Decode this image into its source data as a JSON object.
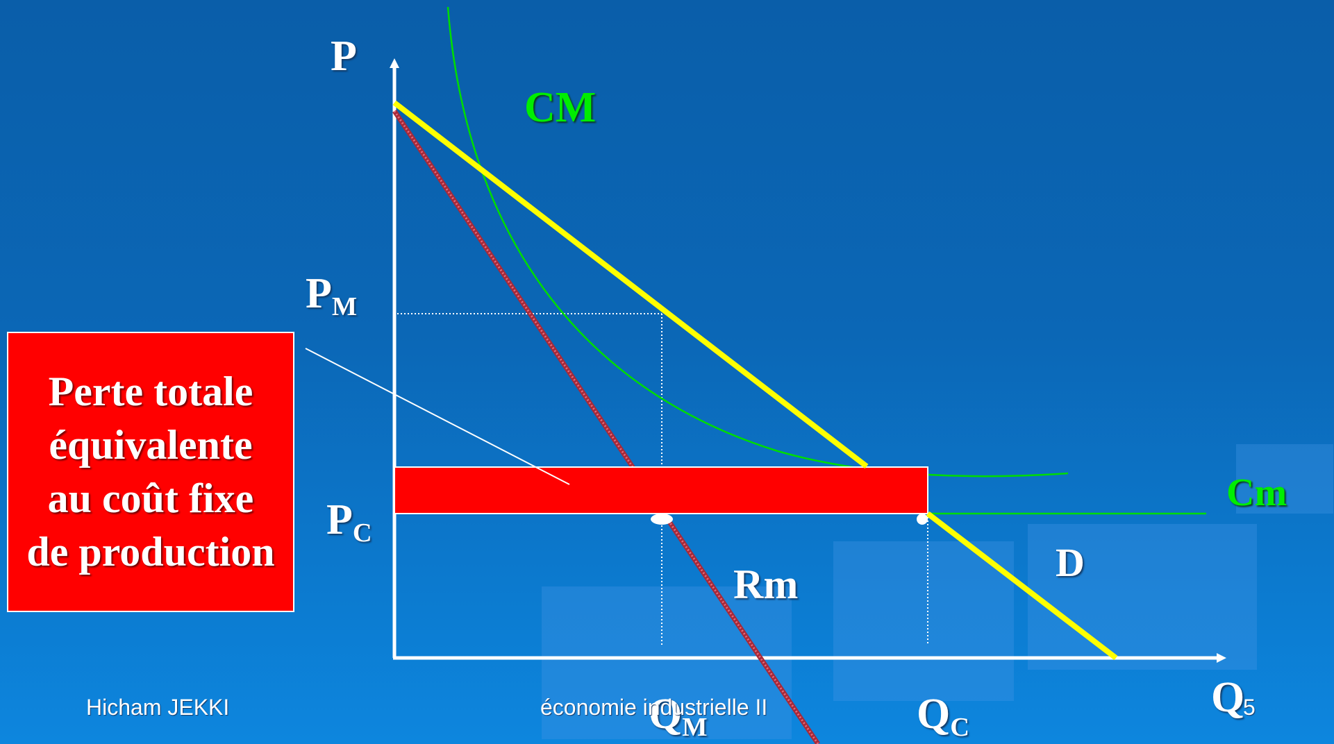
{
  "labels": {
    "p_axis": "P",
    "q_axis": "Q",
    "pm_base": "P",
    "pm_sub": "M",
    "pc_base": "P",
    "pc_sub": "C",
    "qm_base": "Q",
    "qm_sub": "M",
    "qc_base": "Q",
    "qc_sub": "C",
    "cm_avg": "CM",
    "cm_marginal": "Cm",
    "revenue_marginal": "Rm",
    "demand": "D"
  },
  "callout": {
    "text": "Perte totale équivalente au coût fixe de production"
  },
  "footer": {
    "author": "Hicham JEKKI",
    "course": "économie industrielle II",
    "page": "5"
  },
  "colors": {
    "demand": "#ffff00",
    "average_cost": "#00dd00",
    "marginal_cost": "#00dd00",
    "marginal_revenue": "#a52a3a",
    "loss_area": "#ff0000",
    "axes": "#ffffff"
  }
}
